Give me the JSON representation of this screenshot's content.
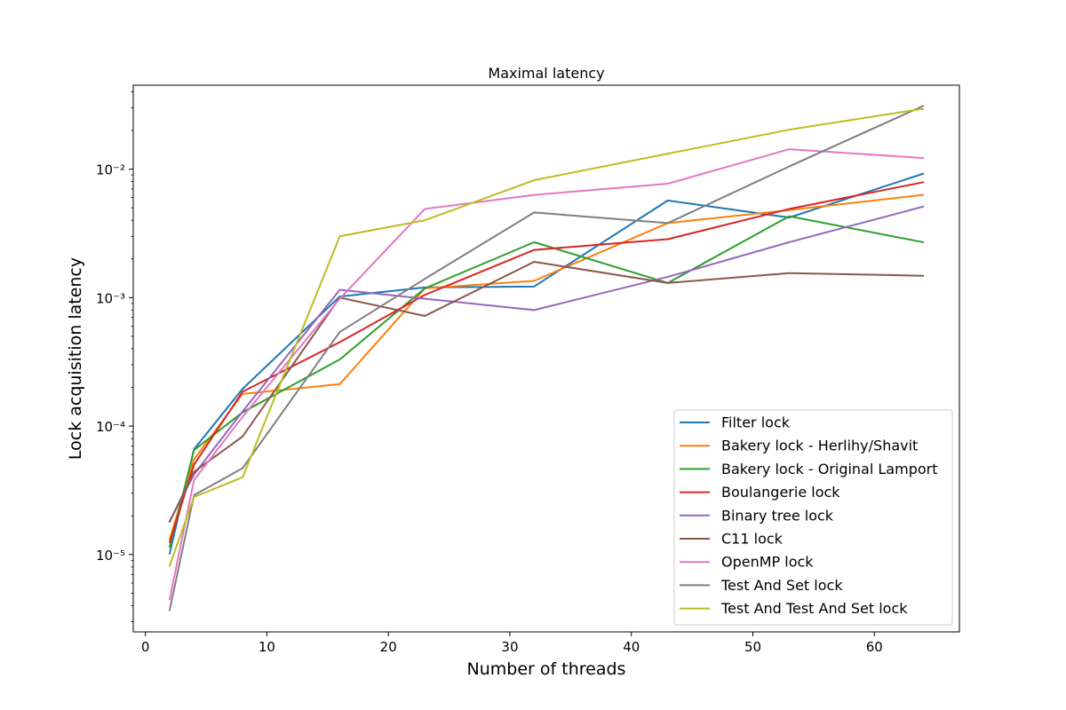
{
  "chart_data": {
    "type": "line",
    "title": "Maximal latency",
    "xlabel": "Number of threads",
    "ylabel": "Lock acquisition latency",
    "xlim": [
      -1,
      67
    ],
    "ylim": [
      2.5e-06,
      0.045
    ],
    "yscale": "log",
    "x_ticks": [
      0,
      10,
      20,
      30,
      40,
      50,
      60
    ],
    "x_tick_labels": [
      "0",
      "10",
      "20",
      "30",
      "40",
      "50",
      "60"
    ],
    "y_ticks": [
      1e-05,
      0.0001,
      0.001,
      0.01
    ],
    "y_tick_labels": [
      "10⁻⁵",
      "10⁻⁴",
      "10⁻³",
      "10⁻²"
    ],
    "grid": false,
    "legend_position": "lower right",
    "series": [
      {
        "name": "Filter lock",
        "color": "#1f77b4",
        "x": [
          2,
          4,
          8,
          16,
          23,
          32,
          43,
          53,
          64
        ],
        "y": [
          1.02e-05,
          6.6e-05,
          0.000195,
          0.00102,
          0.0012,
          0.00122,
          0.0057,
          0.0042,
          0.0092
        ]
      },
      {
        "name": "Bakery lock - Herlihy/Shavit",
        "color": "#ff7f0e",
        "x": [
          2,
          4,
          8,
          16,
          23,
          32,
          43,
          53,
          64
        ],
        "y": [
          1.32e-05,
          5.5e-05,
          0.000178,
          0.000212,
          0.00118,
          0.00135,
          0.0038,
          0.0048,
          0.0063
        ]
      },
      {
        "name": "Bakery lock - Original Lamport",
        "color": "#2ca02c",
        "x": [
          2,
          4,
          8,
          16,
          23,
          32,
          43,
          53,
          64
        ],
        "y": [
          1.15e-05,
          6.5e-05,
          0.000128,
          0.00033,
          0.00118,
          0.0027,
          0.0013,
          0.0043,
          0.0027
        ]
      },
      {
        "name": "Boulangerie lock",
        "color": "#d62728",
        "x": [
          2,
          4,
          8,
          16,
          23,
          32,
          43,
          53,
          64
        ],
        "y": [
          1.25e-05,
          5e-05,
          0.000185,
          0.00045,
          0.00105,
          0.00235,
          0.00285,
          0.0049,
          0.0079
        ]
      },
      {
        "name": "Binary tree lock",
        "color": "#9467bd",
        "x": [
          2,
          4,
          8,
          16,
          23,
          32,
          43,
          53,
          64
        ],
        "y": [
          1.82e-05,
          4.2e-05,
          0.00013,
          0.00115,
          0.00098,
          0.0008,
          0.00145,
          0.0027,
          0.0051
        ]
      },
      {
        "name": "C11 lock",
        "color": "#8c564b",
        "x": [
          2,
          4,
          8,
          16,
          23,
          32,
          43,
          53,
          64
        ],
        "y": [
          1.8e-05,
          4.4e-05,
          8.3e-05,
          0.001,
          0.00072,
          0.0019,
          0.0013,
          0.00155,
          0.00148
        ]
      },
      {
        "name": "OpenMP lock",
        "color": "#e377c2",
        "x": [
          2,
          4,
          8,
          16,
          23,
          32,
          43,
          53,
          64
        ],
        "y": [
          4.5e-06,
          3.8e-05,
          0.000118,
          0.00098,
          0.0049,
          0.0063,
          0.0077,
          0.0143,
          0.0122
        ]
      },
      {
        "name": "Test And Set lock",
        "color": "#7f7f7f",
        "x": [
          2,
          4,
          8,
          16,
          23,
          32,
          43,
          53,
          64
        ],
        "y": [
          3.7e-06,
          2.9e-05,
          4.7e-05,
          0.00054,
          0.0014,
          0.0046,
          0.0038,
          0.0105,
          0.031
        ]
      },
      {
        "name": "Test And Test And Set lock",
        "color": "#bcbd22",
        "x": [
          2,
          4,
          8,
          16,
          23,
          32,
          43,
          53,
          64
        ],
        "y": [
          8.2e-06,
          2.8e-05,
          4e-05,
          0.003,
          0.004,
          0.0082,
          0.0132,
          0.0203,
          0.0295
        ]
      }
    ]
  }
}
